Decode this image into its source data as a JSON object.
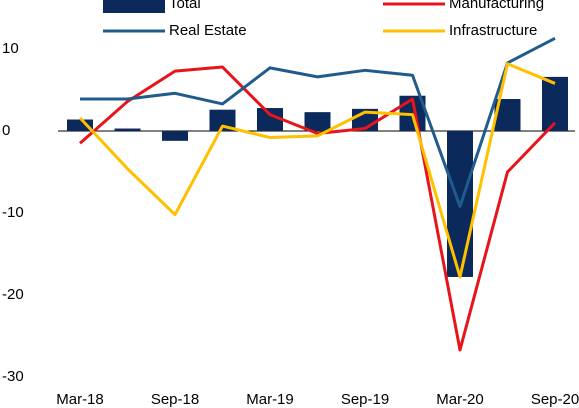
{
  "chart_data": {
    "type": "bar-line",
    "categories": [
      "Mar-18",
      null,
      "Sep-18",
      null,
      "Mar-19",
      null,
      "Sep-19",
      null,
      "Mar-20",
      null,
      "Sep-20"
    ],
    "series": [
      {
        "name": "Total",
        "type": "bar",
        "color": "#0b2a5b",
        "values": [
          1.4,
          0.3,
          -1.2,
          2.6,
          2.8,
          2.3,
          2.7,
          4.3,
          -17.8,
          3.9,
          6.6
        ]
      },
      {
        "name": "Manufacturing",
        "type": "line",
        "color": "#e8141b",
        "values": [
          -1.5,
          3.6,
          7.3,
          7.8,
          2.0,
          -0.3,
          0.3,
          3.9,
          -26.7,
          -5.0,
          1.0
        ]
      },
      {
        "name": "Real Estate",
        "type": "line",
        "color": "#1f5b8c",
        "values": [
          3.9,
          3.9,
          4.6,
          3.3,
          7.7,
          6.6,
          7.4,
          6.8,
          -9.2,
          8.3,
          11.3
        ]
      },
      {
        "name": "Infrastructure",
        "type": "line",
        "color": "#ffc000",
        "values": [
          1.6,
          -4.6,
          -10.2,
          0.6,
          -0.8,
          -0.6,
          2.3,
          2.0,
          -17.8,
          8.2,
          5.8
        ]
      }
    ],
    "ylim": [
      -30,
      12
    ],
    "yticks": [
      -30,
      -20,
      -10,
      0,
      10
    ],
    "grid": false
  }
}
